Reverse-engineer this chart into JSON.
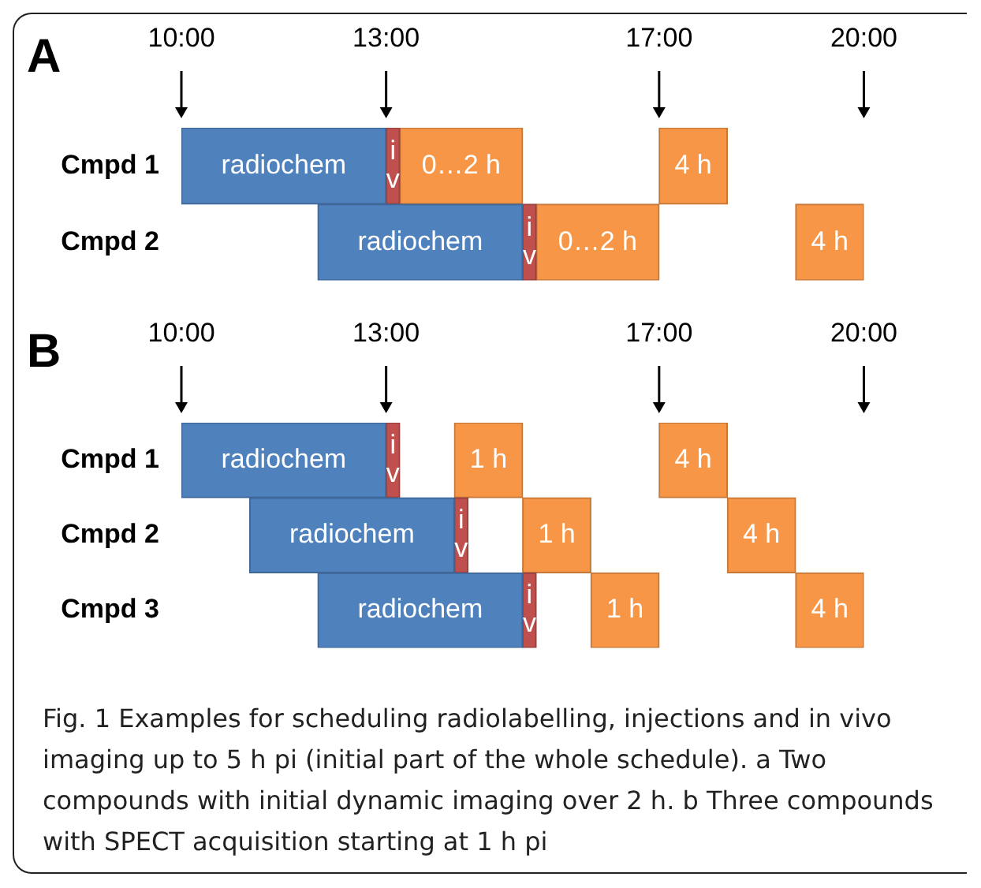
{
  "chart_data": [
    {
      "type": "bar",
      "orientation": "horizontal",
      "title": "A",
      "categories": [
        "Cmpd 1",
        "Cmpd 2"
      ],
      "xlim": [
        10,
        20
      ],
      "xticks": [
        {
          "value": 10,
          "label": "10:00"
        },
        {
          "value": 13,
          "label": "13:00"
        },
        {
          "value": 17,
          "label": "17:00"
        },
        {
          "value": 20,
          "label": "20:00"
        }
      ],
      "grid": false,
      "legend": false,
      "series": [
        {
          "color": "#4f81bd",
          "base": [
            10,
            12
          ],
          "values": [
            3,
            3
          ],
          "value_labels": [
            "radiochem",
            "radiochem"
          ]
        },
        {
          "color": "#c0504d",
          "base": [
            13,
            15
          ],
          "values": [
            0.2,
            0.2
          ],
          "value_labels": [
            "iv",
            "iv"
          ]
        },
        {
          "color": "#f79646",
          "base": [
            13.2,
            15.2
          ],
          "values": [
            1.8,
            1.8
          ],
          "value_labels": [
            "0…2 h",
            "0…2 h"
          ]
        },
        {
          "color": "#f79646",
          "base": [
            17,
            19
          ],
          "values": [
            1,
            1
          ]
        }
      ],
      "annotations": [
        {
          "text": "4 h",
          "x": 17.5,
          "y": "Cmpd 1"
        },
        {
          "text": "4 h",
          "x": 19.5,
          "y": "Cmpd 2"
        }
      ]
    },
    {
      "type": "bar",
      "orientation": "horizontal",
      "title": "B",
      "categories": [
        "Cmpd 1",
        "Cmpd 2",
        "Cmpd 3"
      ],
      "xlim": [
        10,
        20
      ],
      "xticks": [
        {
          "value": 10,
          "label": "10:00"
        },
        {
          "value": 13,
          "label": "13:00"
        },
        {
          "value": 17,
          "label": "17:00"
        },
        {
          "value": 20,
          "label": "20:00"
        }
      ],
      "grid": false,
      "legend": false,
      "annotations": [
        {
          "text": "4 h",
          "x": 17.5,
          "y": "Cmpd 1"
        },
        {
          "text": "4 h",
          "x": 18.5,
          "y": "Cmpd 2"
        },
        {
          "text": "4 h",
          "x": 19.5,
          "y": "Cmpd 3"
        },
        "Fig. 1 Examples for scheduling radiolabelling, injections and in vivo imaging up to 5 h pi (initial part of the whole schedule). a Two compounds with initial dynamic imaging over 2 h. b Three compounds with SPECT acquisition starting at 1 h pi"
      ],
      "series": [
        {
          "color": "#4f81bd",
          "base": [
            10,
            11,
            12
          ],
          "values": [
            3,
            3,
            3
          ],
          "value_labels": [
            "radiochem",
            "radiochem",
            "radiochem"
          ]
        },
        {
          "color": "#c0504d",
          "base": [
            13,
            14,
            15
          ],
          "values": [
            0.2,
            0.2,
            0.2
          ],
          "value_labels": [
            "iv",
            "iv",
            "iv"
          ]
        },
        {
          "color": "#f79646",
          "base": [
            14,
            15,
            16
          ],
          "values": [
            1,
            1,
            1
          ],
          "value_labels": [
            "1 h",
            "1 h",
            "1 h"
          ]
        },
        {
          "color": "#f79646",
          "base": [
            17,
            18,
            19
          ],
          "values": [
            1,
            1,
            1
          ]
        }
      ]
    }
  ]
}
